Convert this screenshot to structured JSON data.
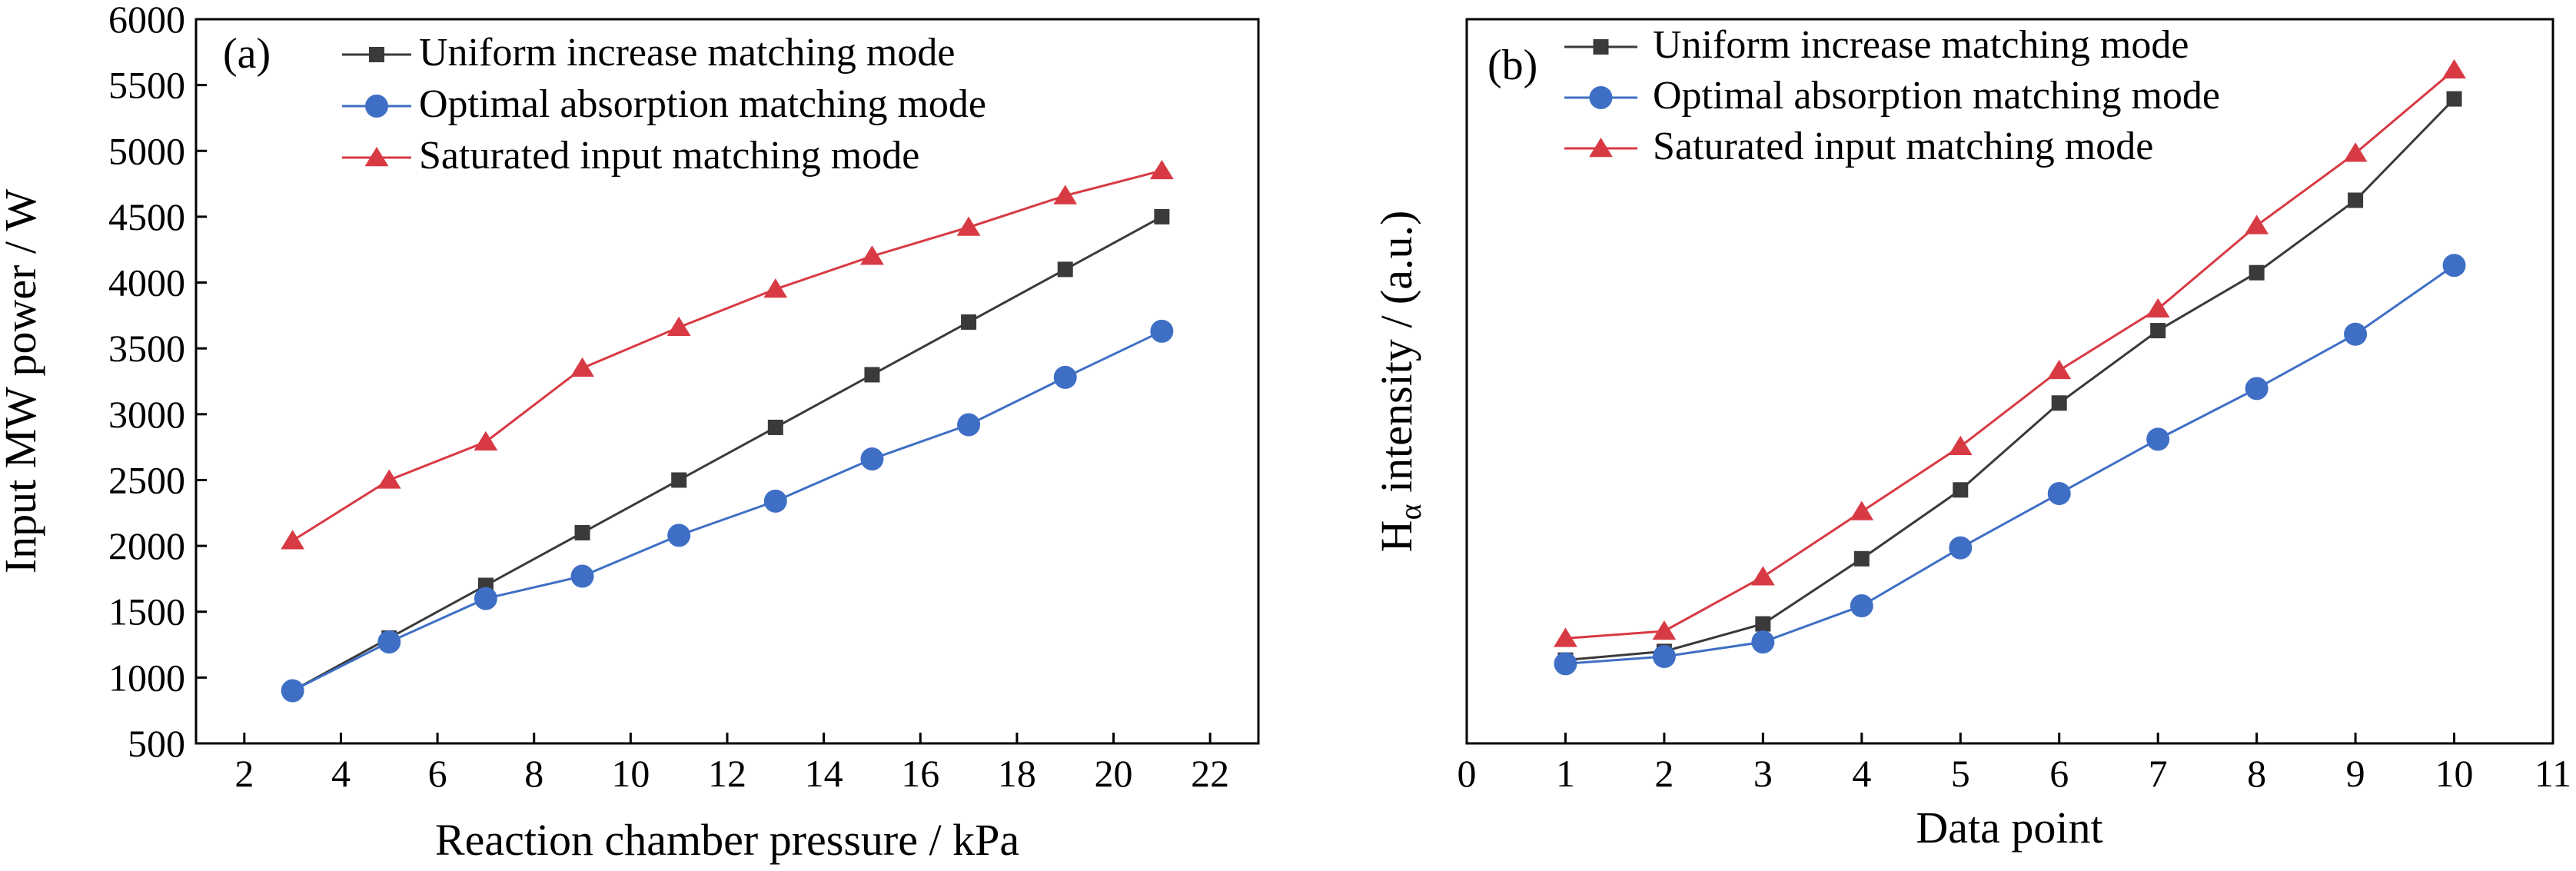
{
  "chart_data": [
    {
      "panel_label": "(a)",
      "type": "line",
      "xlabel": "Reaction chamber pressure / kPa",
      "ylabel": "Input MW power / W",
      "xlim": [
        1,
        23
      ],
      "ylim": [
        500,
        6000
      ],
      "xticks": [
        2,
        4,
        6,
        8,
        10,
        12,
        14,
        16,
        18,
        20,
        22
      ],
      "yticks": [
        500,
        1000,
        1500,
        2000,
        2500,
        3000,
        3500,
        4000,
        4500,
        5000,
        5500,
        6000
      ],
      "legend_position": "top-left",
      "x": [
        3,
        5,
        7,
        9,
        11,
        13,
        15,
        17,
        19,
        21
      ],
      "series": [
        {
          "name": "Uniform increase matching mode",
          "color": "#3a3a3a",
          "marker": "square",
          "values": [
            900,
            1300,
            1700,
            2100,
            2500,
            2900,
            3300,
            3700,
            4100,
            4500
          ]
        },
        {
          "name": "Optimal absorption matching mode",
          "color": "#3f6fc5",
          "marker": "circle",
          "values": [
            900,
            1270,
            1600,
            1770,
            2080,
            2340,
            2660,
            2920,
            3280,
            3630
          ]
        },
        {
          "name": "Saturated input matching mode",
          "color": "#d83a44",
          "marker": "triangle",
          "values": [
            2040,
            2500,
            2790,
            3350,
            3660,
            3950,
            4200,
            4420,
            4660,
            4850
          ]
        }
      ]
    },
    {
      "panel_label": "(b)",
      "type": "line",
      "xlabel": "Data point",
      "ylabel_main": "H",
      "ylabel_sub": "α",
      "ylabel_rest": " intensity / (a.u.)",
      "xlim": [
        0,
        11
      ],
      "ylim": [
        0,
        100
      ],
      "xticks": [
        0,
        1,
        2,
        3,
        4,
        5,
        6,
        7,
        8,
        9,
        10,
        11
      ],
      "yticks_labeled": false,
      "legend_position": "top-left",
      "x": [
        1,
        2,
        3,
        4,
        5,
        6,
        7,
        8,
        9,
        10
      ],
      "series": [
        {
          "name": "Uniform increase matching mode",
          "color": "#3a3a3a",
          "marker": "square",
          "values": [
            11.5,
            12.7,
            16.5,
            25.5,
            35,
            47,
            57,
            65,
            75,
            89
          ]
        },
        {
          "name": "Optimal absorption matching mode",
          "color": "#3f6fc5",
          "marker": "circle",
          "values": [
            11,
            12,
            14,
            19,
            27,
            34.5,
            42,
            49,
            56.5,
            66
          ]
        },
        {
          "name": "Saturated input matching mode",
          "color": "#d83a44",
          "marker": "triangle",
          "values": [
            14.5,
            15.5,
            23,
            32,
            41,
            51.5,
            60,
            71.5,
            81.5,
            93
          ]
        }
      ]
    }
  ]
}
